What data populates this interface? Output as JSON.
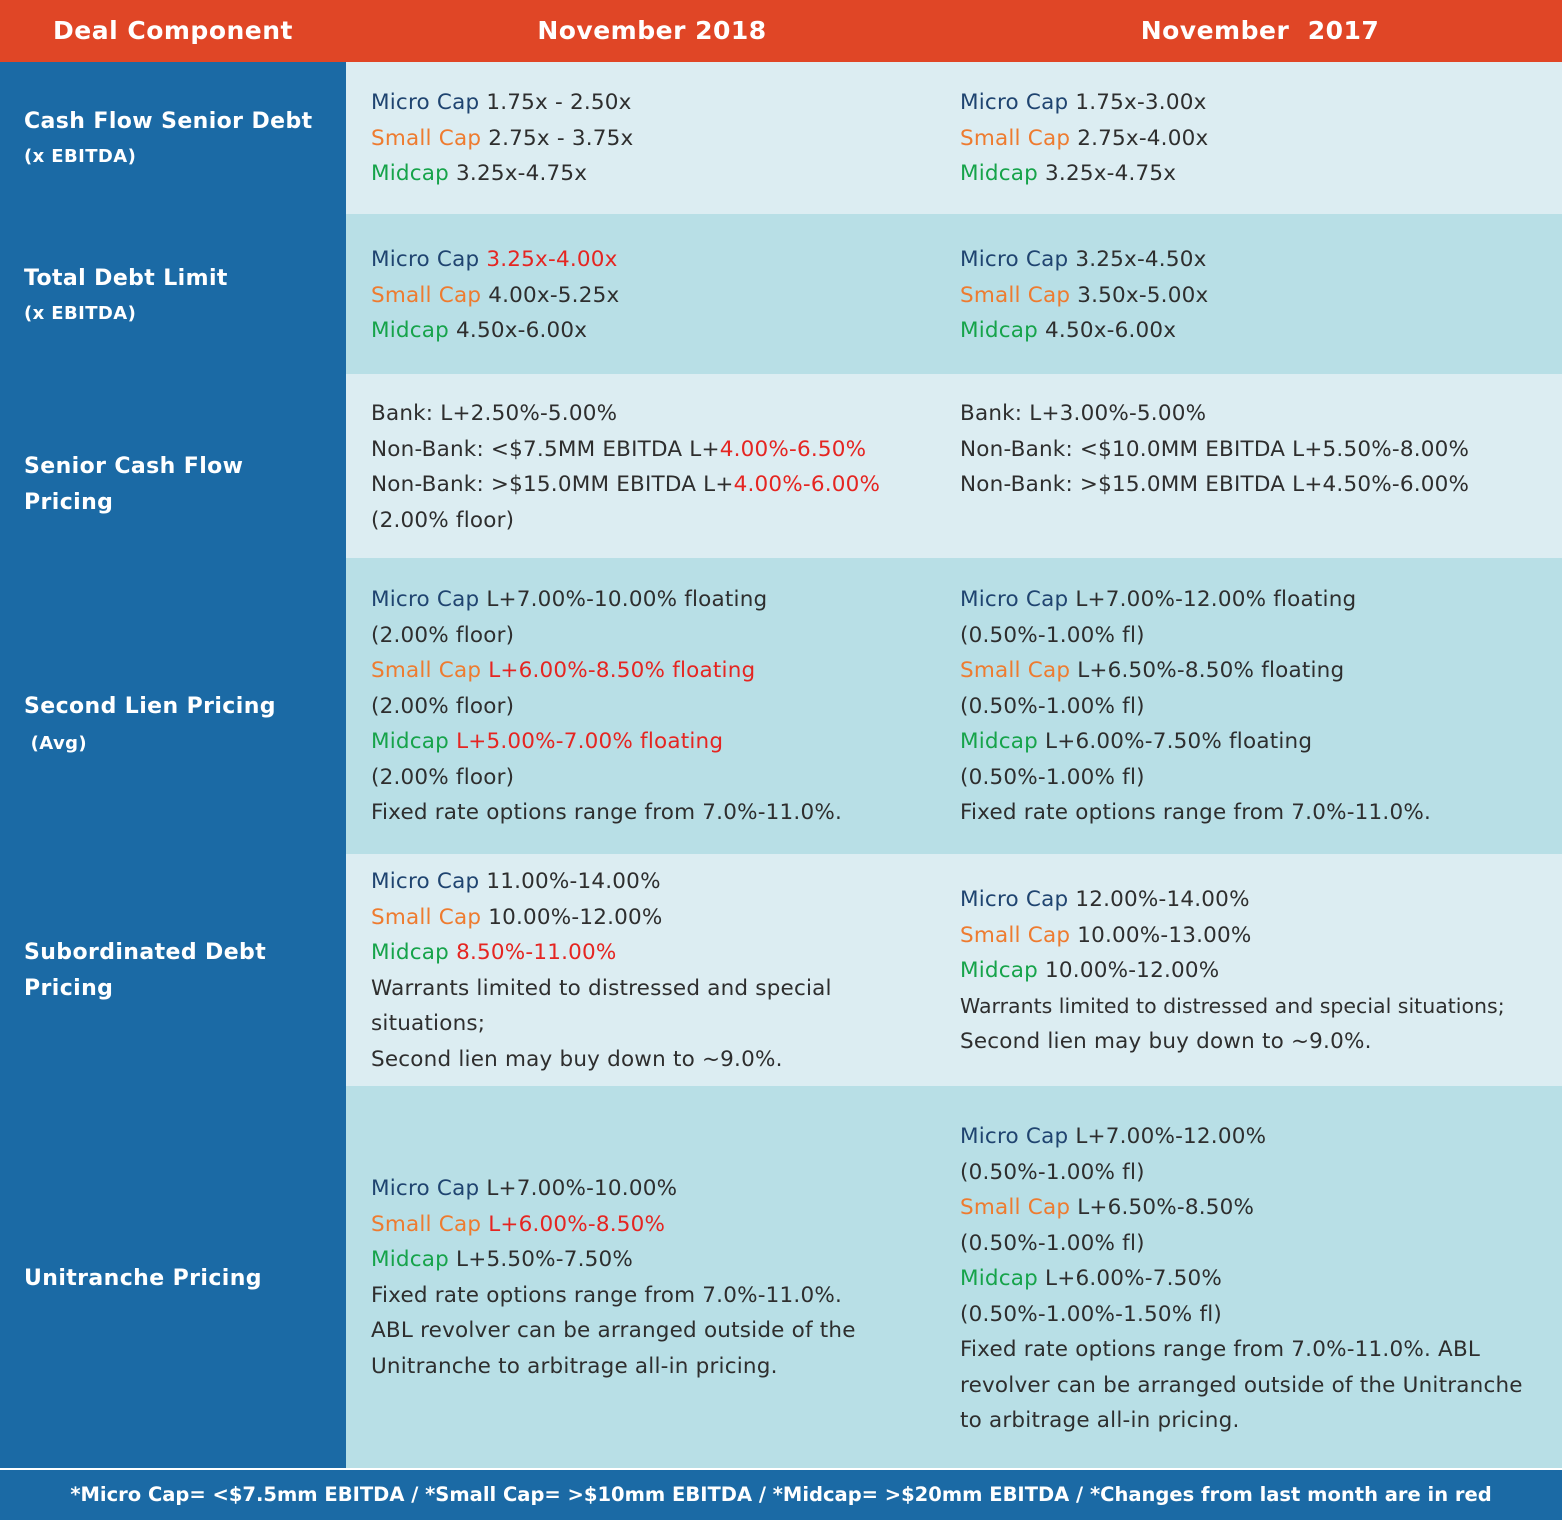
{
  "header": {
    "col0": "Deal Component",
    "col1": "November 2018",
    "col2": "November  2017"
  },
  "tiers": {
    "micro": "Micro Cap",
    "small": "Small Cap",
    "mid": "Midcap"
  },
  "colors": {
    "header_bg": "#e04626",
    "sidebar_bg": "#1b6aa5",
    "row_light": "#dcedf2",
    "row_dark": "#b8dfe6",
    "micro_cap": "#1f4470",
    "small_cap": "#ee7b2f",
    "midcap": "#16a34a",
    "change_red": "#e52521"
  },
  "rows": [
    {
      "label_line1": "Cash Flow Senior Debt",
      "label_line2": "(x EBITDA)",
      "nov2018": {
        "micro": " 1.75x - 2.50x",
        "small": " 2.75x - 3.75x",
        "mid": " 3.25x-4.75x"
      },
      "nov2017": {
        "micro": " 1.75x-3.00x",
        "small": " 2.75x-4.00x",
        "mid": " 3.25x-4.75x"
      }
    },
    {
      "label_line1": "Total Debt Limit",
      "label_line2": "(x EBITDA)",
      "nov2018": {
        "micro": "3.25x-4.00x",
        "small": " 4.00x-5.25x",
        "mid": " 4.50x-6.00x"
      },
      "nov2017": {
        "micro": " 3.25x-4.50x",
        "small": " 3.50x-5.00x",
        "mid": " 4.50x-6.00x"
      }
    },
    {
      "label": "Senior Cash Flow Pricing",
      "nov2018": {
        "line1": "Bank: L+2.50%-5.00%",
        "line2_prefix": "Non-Bank: <$7.5MM EBITDA L+",
        "line2_red": "4.00%-6.50%",
        "line3_prefix": "Non-Bank: >$15.0MM EBITDA L+",
        "line3_red": "4.00%-6.00%",
        "line4": "(2.00% floor)"
      },
      "nov2017": {
        "line1": "Bank: L+3.00%-5.00%",
        "line2": "Non-Bank: <$10.0MM EBITDA L+5.50%-8.00%",
        "line3": "Non-Bank: >$15.0MM EBITDA L+4.50%-6.00%"
      }
    },
    {
      "label_main": "Second Lien Pricing",
      "label_small": " (Avg)",
      "nov2018": {
        "micro": " L+7.00%-10.00% floating",
        "micro_floor": "(2.00% floor)",
        "small_red": "L+6.00%-8.50% floating",
        "small_floor": "(2.00% floor)",
        "mid_red": "L+5.00%-7.00% floating",
        "mid_floor": "(2.00% floor)",
        "fixed": "Fixed rate options range from 7.0%-11.0%."
      },
      "nov2017": {
        "micro": " L+7.00%-12.00% floating",
        "micro_floor": "(0.50%-1.00% fl)",
        "small": " L+6.50%-8.50% floating",
        "small_floor": "(0.50%-1.00% fl)",
        "mid": " L+6.00%-7.50% floating",
        "mid_floor": "(0.50%-1.00% fl)",
        "fixed": "Fixed rate options range from 7.0%-11.0%."
      }
    },
    {
      "label_line1": "Subordinated Debt",
      "label_line2": "Pricing",
      "nov2018": {
        "micro": " 11.00%-14.00%",
        "small": " 10.00%-12.00%",
        "mid_red": "8.50%-11.00%",
        "warrants": "Warrants limited to distressed and special situations;",
        "second_lien": "Second lien may buy down to ~9.0%."
      },
      "nov2017": {
        "micro": " 12.00%-14.00%",
        "small": " 10.00%-13.00%",
        "mid": " 10.00%-12.00%",
        "warrants": "Warrants limited to distressed and special situations;",
        "second_lien": "Second lien may buy down to ~9.0%."
      }
    },
    {
      "label": "Unitranche Pricing",
      "nov2018": {
        "micro": " L+7.00%-10.00%",
        "small_red": "L+6.00%-8.50%",
        "mid": " L+5.50%-7.50%",
        "fixed": "Fixed rate options range from 7.0%-11.0%.",
        "abl": "ABL revolver can be arranged outside of the Unitranche to arbitrage all-in pricing."
      },
      "nov2017": {
        "micro": " L+7.00%-12.00%",
        "micro_floor": "(0.50%-1.00% fl)",
        "small": " L+6.50%-8.50%",
        "small_floor": "(0.50%-1.00% fl)",
        "mid": " L+6.00%-7.50%",
        "mid_floor": "(0.50%-1.00%-1.50% fl)",
        "fixed_abl": "Fixed rate options range from 7.0%-11.0%. ABL revolver can be arranged outside of the Unitranche to arbitrage all-in pricing."
      }
    }
  ],
  "footer": "*Micro Cap= <$7.5mm EBITDA / *Small Cap= >$10mm EBITDA / *Midcap= >$20mm EBITDA / *Changes from last month are in red"
}
